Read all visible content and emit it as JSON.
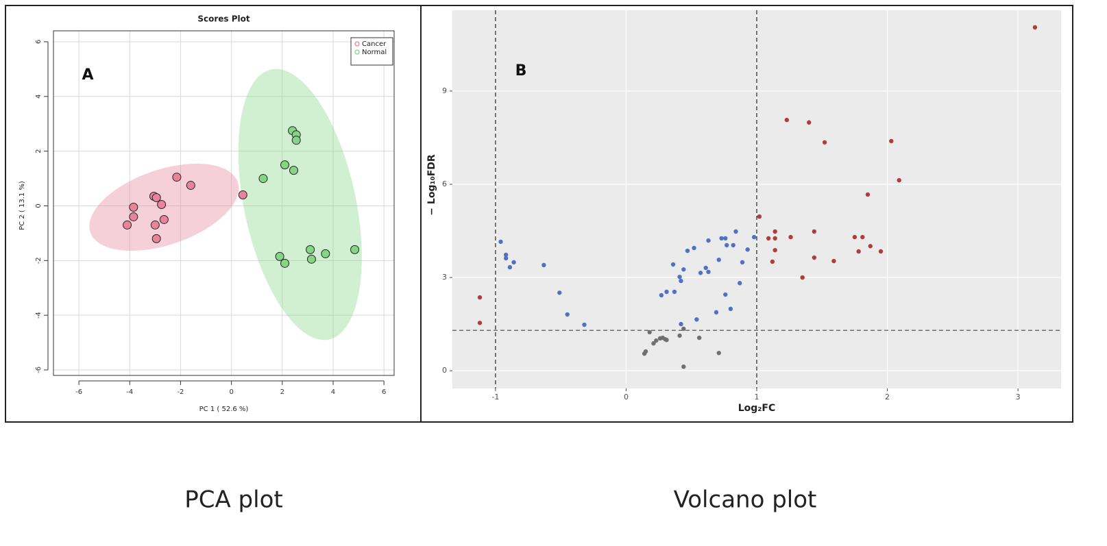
{
  "chart_data": [
    {
      "type": "scatter",
      "title": "Scores Plot",
      "annotation": "A",
      "x_label": "PC 1 ( 52.6 %)",
      "y_label": "PC 2 ( 13.1 %)",
      "xlim": [
        -7,
        6.4
      ],
      "ylim": [
        -6.2,
        6.4
      ],
      "xticks": [
        -6,
        -4,
        -2,
        0,
        2,
        4,
        6
      ],
      "yticks": [
        -6,
        -4,
        -2,
        0,
        2,
        4,
        6
      ],
      "grid": true,
      "legend": "top-right",
      "series": [
        {
          "name": "Cancer",
          "color": "#e8839a",
          "x": [
            -4.1,
            -3.85,
            -3.85,
            -3.05,
            -2.95,
            -3.0,
            -2.95,
            -2.75,
            -2.65,
            -2.15,
            -1.6,
            0.45
          ],
          "y": [
            -0.7,
            -0.05,
            -0.4,
            0.35,
            0.3,
            -0.7,
            -1.2,
            0.05,
            -0.5,
            1.05,
            0.75,
            0.4
          ],
          "ellipse": {
            "center": [
              -2.65,
              -0.05
            ],
            "axis1": [
              2.9,
              0.92
            ],
            "axis2": [
              0.48,
              -1.3
            ]
          }
        },
        {
          "name": "Normal",
          "color": "#86d486",
          "x": [
            1.25,
            2.1,
            2.45,
            2.4,
            2.55,
            2.55,
            1.9,
            2.1,
            3.1,
            3.15,
            3.7,
            4.85
          ],
          "y": [
            1.0,
            1.5,
            1.3,
            2.75,
            2.6,
            2.4,
            -1.85,
            -2.1,
            -1.6,
            -1.95,
            -1.75,
            -1.6
          ],
          "ellipse": {
            "center": [
              2.7,
              0.05
            ],
            "axis1": [
              -1.13,
              4.94
            ],
            "axis2": [
              2.15,
              0.42
            ]
          }
        }
      ]
    },
    {
      "type": "scatter",
      "annotation": "B",
      "x_label": "Log₂FC",
      "y_label": "− Log₁₀FDR",
      "xlim": [
        -1.33,
        3.33
      ],
      "ylim": [
        -0.57,
        11.6
      ],
      "xticks": [
        -1,
        0,
        1,
        2,
        3
      ],
      "yticks": [
        0,
        3,
        6,
        9
      ],
      "grid": true,
      "background": "#ebebeb",
      "vlines": [
        -1,
        1
      ],
      "hlines": [
        1.3
      ],
      "series": [
        {
          "color": "#b23b3b",
          "x": [
            -1.12,
            -1.12,
            1.02,
            1.09,
            1.14,
            1.14,
            1.14,
            1.12,
            1.23,
            1.26,
            1.35,
            1.4,
            1.44,
            1.44,
            1.52,
            1.59,
            1.75,
            1.78,
            1.81,
            1.85,
            1.87,
            1.95,
            2.03,
            2.09,
            3.13
          ],
          "y": [
            2.36,
            1.54,
            4.96,
            4.26,
            4.48,
            4.26,
            3.88,
            3.51,
            8.07,
            4.3,
            3.0,
            7.99,
            4.48,
            3.64,
            7.35,
            3.53,
            4.3,
            3.84,
            4.3,
            5.67,
            4.01,
            3.84,
            7.39,
            6.13,
            11.05
          ]
        },
        {
          "color": "#5470c2",
          "x": [
            -0.96,
            -0.92,
            -0.92,
            -0.89,
            -0.86,
            -0.63,
            -0.51,
            -0.45,
            -0.32,
            0.27,
            0.31,
            0.36,
            0.37,
            0.41,
            0.42,
            0.44,
            0.42,
            0.47,
            0.52,
            0.54,
            0.57,
            0.61,
            0.63,
            0.63,
            0.69,
            0.71,
            0.73,
            0.76,
            0.76,
            0.77,
            0.8,
            0.82,
            0.84,
            0.87,
            0.89,
            0.93,
            0.98
          ],
          "y": [
            4.15,
            3.73,
            3.62,
            3.33,
            3.49,
            3.4,
            2.51,
            1.81,
            1.48,
            2.43,
            2.54,
            3.42,
            2.54,
            3.02,
            2.89,
            3.26,
            1.5,
            3.86,
            3.95,
            1.65,
            3.15,
            3.31,
            3.18,
            4.19,
            1.88,
            3.57,
            4.26,
            4.26,
            2.45,
            4.04,
            1.99,
            4.04,
            4.48,
            2.82,
            3.49,
            3.9,
            4.3
          ]
        },
        {
          "color": "#707070",
          "x": [
            0.14,
            0.15,
            0.18,
            0.21,
            0.23,
            0.26,
            0.28,
            0.31,
            0.3,
            0.41,
            0.44,
            0.44,
            0.56,
            0.71
          ],
          "y": [
            0.55,
            0.62,
            1.24,
            0.88,
            0.97,
            1.04,
            1.06,
            0.99,
            1.01,
            1.13,
            1.35,
            0.13,
            1.06,
            0.57
          ]
        }
      ]
    }
  ],
  "captions": [
    "PCA plot",
    "Volcano plot"
  ]
}
